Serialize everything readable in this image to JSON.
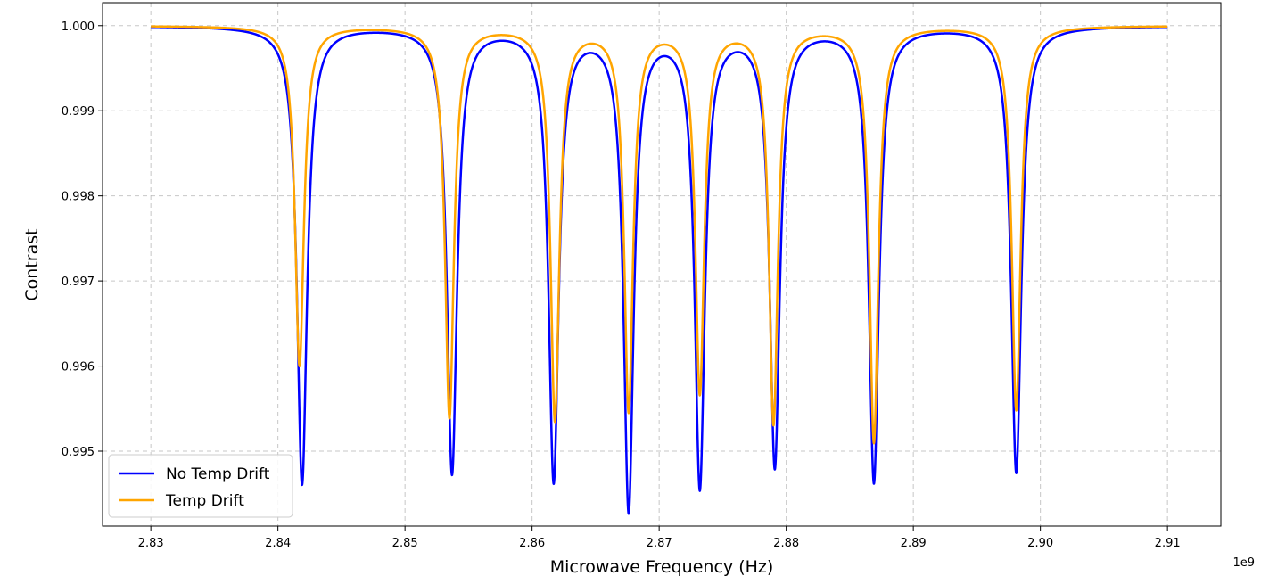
{
  "chart_data": {
    "type": "line",
    "title": "",
    "xlabel": "Microwave Frequency (Hz)",
    "ylabel": "Contrast",
    "x_offset_label": "1e9",
    "xlim": [
      2.8262,
      2.9142
    ],
    "ylim": [
      0.99412,
      1.00027
    ],
    "x_range": [
      2.83,
      2.91
    ],
    "x_scale_note": "x values in GHz (units of 1e9 Hz)",
    "x_ticks": [
      2.83,
      2.84,
      2.85,
      2.86,
      2.87,
      2.88,
      2.89,
      2.9,
      2.91
    ],
    "x_tick_labels": [
      "2.83",
      "2.84",
      "2.85",
      "2.86",
      "2.87",
      "2.88",
      "2.89",
      "2.90",
      "2.91"
    ],
    "y_ticks": [
      0.995,
      0.996,
      0.997,
      0.998,
      0.999,
      1.0
    ],
    "y_tick_labels": [
      "0.995",
      "0.996",
      "0.997",
      "0.998",
      "0.999",
      "1.000"
    ],
    "grid": true,
    "legend_position": "bottom-left",
    "series": [
      {
        "name": "No Temp Drift",
        "color": "#0000ff",
        "baseline": 1.0,
        "linewidth_ghz": 0.00048,
        "dips": [
          {
            "center": 2.8419,
            "min": 0.99462
          },
          {
            "center": 2.8537,
            "min": 0.99476
          },
          {
            "center": 2.8617,
            "min": 0.99469
          },
          {
            "center": 2.8676,
            "min": 0.99436
          },
          {
            "center": 2.8732,
            "min": 0.99463
          },
          {
            "center": 2.8791,
            "min": 0.99486
          },
          {
            "center": 2.8869,
            "min": 0.99466
          },
          {
            "center": 2.8981,
            "min": 0.99476
          }
        ]
      },
      {
        "name": "Temp Drift",
        "color": "#ffa500",
        "baseline": 1.0,
        "linewidth_ghz": 0.00042,
        "dips": [
          {
            "center": 2.8417,
            "min": 0.99601
          },
          {
            "center": 2.8535,
            "min": 0.99541
          },
          {
            "center": 2.8618,
            "min": 0.99539
          },
          {
            "center": 2.8676,
            "min": 0.99551
          },
          {
            "center": 2.8732,
            "min": 0.99572
          },
          {
            "center": 2.879,
            "min": 0.99535
          },
          {
            "center": 2.8869,
            "min": 0.99512
          },
          {
            "center": 2.8981,
            "min": 0.99549
          }
        ]
      }
    ]
  }
}
